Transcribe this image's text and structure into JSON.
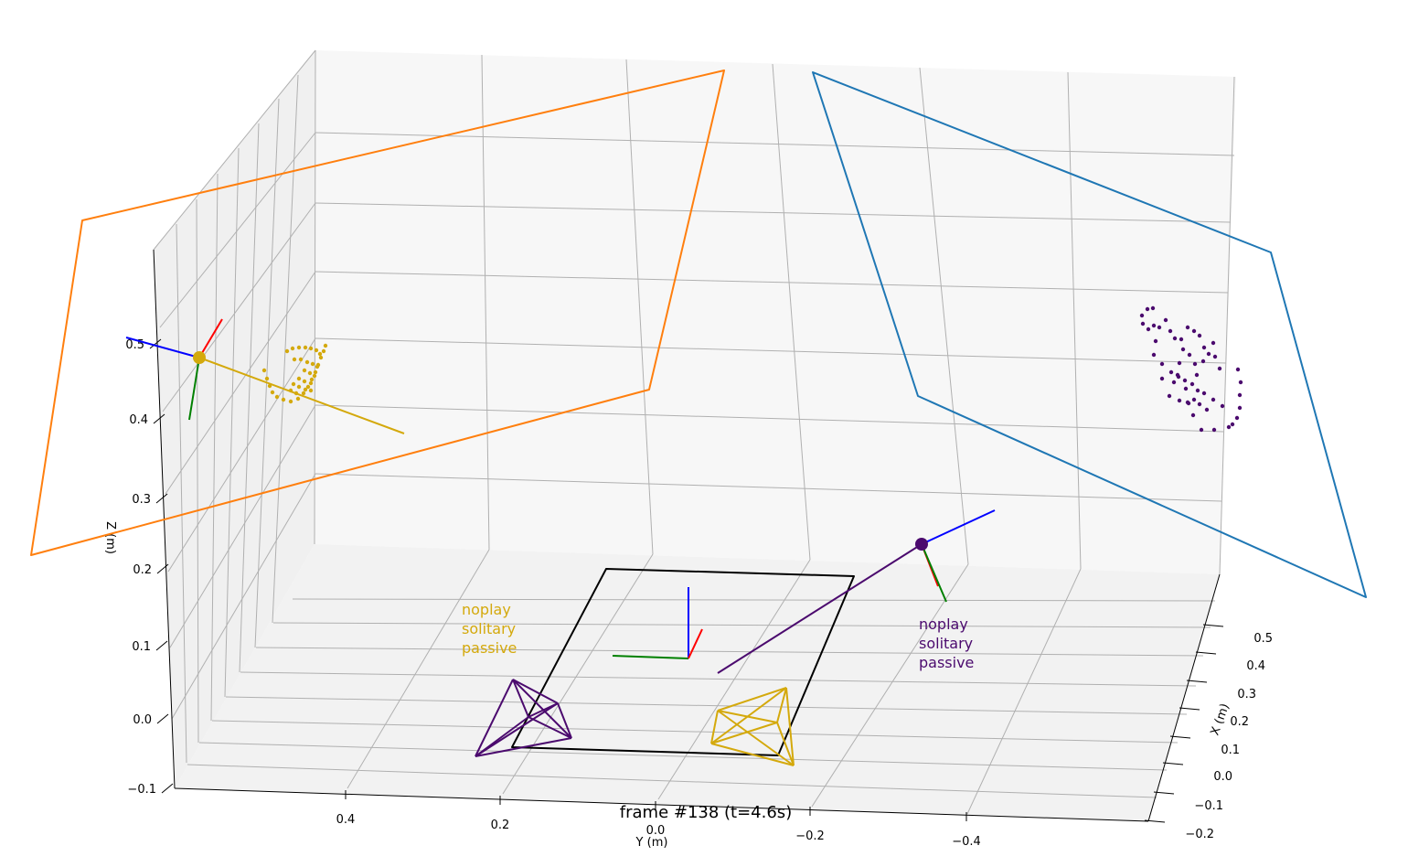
{
  "chart_data": {
    "type": "scatter",
    "projection": "3d",
    "title": "frame #138 (t=4.6s)",
    "xlabel": "X (m)",
    "ylabel": "Y (m)",
    "zlabel": "Z (m)",
    "x_ticks": [
      "−0.2",
      "−0.1",
      "0.0",
      "0.1",
      "0.2",
      "0.3",
      "0.4",
      "0.5"
    ],
    "y_ticks": [
      "0.4",
      "0.2",
      "0.0",
      "−0.2",
      "−0.4"
    ],
    "z_ticks": [
      "−0.1",
      "0.0",
      "0.1",
      "0.2",
      "0.3",
      "0.4",
      "0.5"
    ],
    "grid": true,
    "colors": {
      "person_left": "#d4a90c",
      "person_right": "#4b0a6e",
      "plane_left": "#ff7f0e",
      "plane_right": "#1f77b4",
      "table": "#000000",
      "axis_x": "#ff0000",
      "axis_y": "#008000",
      "axis_z": "#0000ff",
      "pane": "#f2f2f2",
      "grid": "#b0b0b0"
    },
    "annotations": [
      {
        "text": [
          "noplay",
          "solitary",
          "passive"
        ],
        "color": "#d4a90c"
      },
      {
        "text": [
          "noplay",
          "solitary",
          "passive"
        ],
        "color": "#4b0a6e"
      }
    ]
  }
}
